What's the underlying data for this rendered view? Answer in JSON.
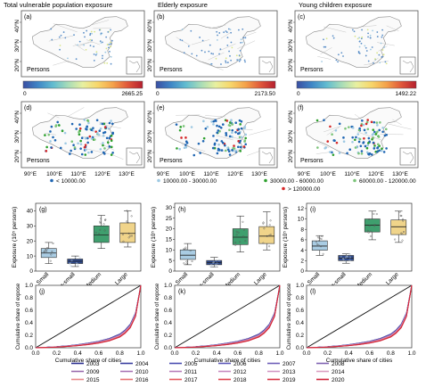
{
  "map_row1": [
    {
      "label": "(a)",
      "title": "Total vulnerable population exposure",
      "unit": "Persons",
      "cb_min": "0",
      "cb_max": "2665.25"
    },
    {
      "label": "(b)",
      "title": "Elderly  exposure",
      "unit": "Persons",
      "cb_min": "0",
      "cb_max": "2173.50"
    },
    {
      "label": "(c)",
      "title": "Young children  exposure",
      "unit": "Persons",
      "cb_min": "0",
      "cb_max": "1492.22"
    }
  ],
  "map_row2": [
    {
      "label": "(d)",
      "unit": "Persons"
    },
    {
      "label": "(e)",
      "unit": "Persons"
    },
    {
      "label": "(f)",
      "unit": "Persons"
    }
  ],
  "map_axes": {
    "x_ticks": [
      "90°E",
      "100°E",
      "110°E",
      "120°E",
      "130°E"
    ],
    "y_ticks": [
      "40°N",
      "30°N",
      "20°N"
    ]
  },
  "colorbar_colors": [
    "#3a4fa3",
    "#3f86c6",
    "#62bcd0",
    "#a7dcb8",
    "#e8f0a0",
    "#f7d66a",
    "#f4a24a",
    "#e0573a",
    "#b51f2e"
  ],
  "dot_legend": [
    {
      "label": "< 10000.00",
      "color": "#1f66b3"
    },
    {
      "label": "10000.00 - 30000.00",
      "color": "#9ec9e3"
    },
    {
      "label": "30000.00 - 60000.00",
      "color": "#2ca02c"
    },
    {
      "label": "60000.00 - 120000.00",
      "color": "#7cc47a"
    },
    {
      "label": "> 120000.00",
      "color": "#d62728"
    }
  ],
  "chart_data": [
    {
      "type": "box",
      "label": "(g)",
      "ylabel": "Exposure (10⁵ persons)",
      "ylim": [
        0,
        45
      ],
      "yticks": [
        0,
        10,
        20,
        30,
        40
      ],
      "categories": [
        "Small",
        "Medium-small",
        "Medium",
        "Large"
      ],
      "colors": [
        "#a9cce3",
        "#2e4a8c",
        "#3f9f6e",
        "#f0d48a"
      ],
      "boxes": [
        {
          "min": 5,
          "q1": 9,
          "median": 12,
          "q3": 15,
          "max": 19
        },
        {
          "min": 3,
          "q1": 5,
          "median": 6.5,
          "q3": 8,
          "max": 10
        },
        {
          "min": 15,
          "q1": 19,
          "median": 24,
          "q3": 30,
          "max": 37
        },
        {
          "min": 16,
          "q1": 19,
          "median": 25,
          "q3": 32,
          "max": 40
        }
      ]
    },
    {
      "type": "box",
      "label": "(h)",
      "ylabel": "Exposure (10⁵ persons)",
      "ylim": [
        0,
        32
      ],
      "yticks": [
        0,
        5,
        10,
        15,
        20,
        25,
        30
      ],
      "categories": [
        "Small",
        "Medium-small",
        "Medium",
        "Large"
      ],
      "colors": [
        "#a9cce3",
        "#2e4a8c",
        "#3f9f6e",
        "#f0d48a"
      ],
      "boxes": [
        {
          "min": 3,
          "q1": 5.5,
          "median": 7.5,
          "q3": 10,
          "max": 13
        },
        {
          "min": 2,
          "q1": 3,
          "median": 4,
          "q3": 5,
          "max": 6.5
        },
        {
          "min": 9,
          "q1": 12.5,
          "median": 16,
          "q3": 20,
          "max": 26
        },
        {
          "min": 10,
          "q1": 13,
          "median": 16.5,
          "q3": 21,
          "max": 28
        }
      ]
    },
    {
      "type": "box",
      "label": "(i)",
      "ylabel": "Exposure (10⁵ persons)",
      "ylim": [
        0,
        13
      ],
      "yticks": [
        0,
        2,
        4,
        6,
        8,
        10,
        12
      ],
      "categories": [
        "Small",
        "Medium-small",
        "Medium",
        "Large"
      ],
      "colors": [
        "#a9cce3",
        "#2e4a8c",
        "#3f9f6e",
        "#f0d48a"
      ],
      "boxes": [
        {
          "min": 3,
          "q1": 4,
          "median": 4.8,
          "q3": 5.8,
          "max": 6.8
        },
        {
          "min": 1.5,
          "q1": 2,
          "median": 2.5,
          "q3": 3,
          "max": 3.3
        },
        {
          "min": 6,
          "q1": 7.5,
          "median": 8.8,
          "q3": 10,
          "max": 11.5
        },
        {
          "min": 5.5,
          "q1": 7,
          "median": 8.5,
          "q3": 9.8,
          "max": 11.5
        }
      ]
    },
    {
      "type": "line",
      "label": "(j)",
      "xlabel": "Cumulative share of cities",
      "ylabel": "Cumulative share of expose",
      "xlim": [
        0,
        1
      ],
      "ylim": [
        0,
        1
      ],
      "ticks": [
        "0.0",
        "0.2",
        "0.4",
        "0.6",
        "0.8",
        "1.0"
      ],
      "x": [
        0,
        0.1,
        0.2,
        0.3,
        0.4,
        0.5,
        0.6,
        0.7,
        0.8,
        0.85,
        0.9,
        0.95,
        1.0
      ],
      "band_low": [
        0,
        0.004,
        0.01,
        0.02,
        0.033,
        0.05,
        0.075,
        0.11,
        0.17,
        0.23,
        0.32,
        0.5,
        1.0
      ],
      "band_high": [
        0,
        0.008,
        0.018,
        0.032,
        0.05,
        0.075,
        0.105,
        0.15,
        0.22,
        0.285,
        0.38,
        0.56,
        1.0
      ]
    },
    {
      "type": "line",
      "label": "(k)",
      "xlabel": "Cumulative share of cities",
      "ylabel": "Cumulative share of expose",
      "xlim": [
        0,
        1
      ],
      "ylim": [
        0,
        1
      ],
      "ticks": [
        "0.0",
        "0.2",
        "0.4",
        "0.6",
        "0.8",
        "1.0"
      ],
      "x": [
        0,
        0.1,
        0.2,
        0.3,
        0.4,
        0.5,
        0.6,
        0.7,
        0.8,
        0.85,
        0.9,
        0.95,
        1.0
      ],
      "band_low": [
        0,
        0.004,
        0.01,
        0.02,
        0.033,
        0.05,
        0.075,
        0.11,
        0.17,
        0.23,
        0.32,
        0.5,
        1.0
      ],
      "band_high": [
        0,
        0.008,
        0.018,
        0.032,
        0.05,
        0.075,
        0.105,
        0.15,
        0.22,
        0.285,
        0.38,
        0.56,
        1.0
      ]
    },
    {
      "type": "line",
      "label": "(l)",
      "xlabel": "Cumulative share of cities",
      "ylabel": "Cumulative share of expose",
      "xlim": [
        0,
        1
      ],
      "ylim": [
        0,
        1
      ],
      "ticks": [
        "0.0",
        "0.2",
        "0.4",
        "0.6",
        "0.8",
        "1.0"
      ],
      "x": [
        0,
        0.1,
        0.2,
        0.3,
        0.4,
        0.5,
        0.6,
        0.7,
        0.8,
        0.85,
        0.9,
        0.95,
        1.0
      ],
      "band_low": [
        0,
        0.004,
        0.01,
        0.02,
        0.033,
        0.05,
        0.075,
        0.11,
        0.17,
        0.23,
        0.32,
        0.5,
        1.0
      ],
      "band_high": [
        0,
        0.008,
        0.018,
        0.032,
        0.05,
        0.075,
        0.105,
        0.15,
        0.22,
        0.285,
        0.38,
        0.56,
        1.0
      ]
    }
  ],
  "year_legend": [
    {
      "year": "2003",
      "color": "#2b2f8f"
    },
    {
      "year": "2004",
      "color": "#3a3ea0"
    },
    {
      "year": "2005",
      "color": "#4a4db0"
    },
    {
      "year": "2006",
      "color": "#5c58b8"
    },
    {
      "year": "2007",
      "color": "#6e5fb8"
    },
    {
      "year": "2008",
      "color": "#8064b2"
    },
    {
      "year": "2009",
      "color": "#9a6cae"
    },
    {
      "year": "2010",
      "color": "#a975b5"
    },
    {
      "year": "2011",
      "color": "#b87fb9"
    },
    {
      "year": "2012",
      "color": "#c88cc0"
    },
    {
      "year": "2013",
      "color": "#d298c4"
    },
    {
      "year": "2014",
      "color": "#dba0c2"
    },
    {
      "year": "2015",
      "color": "#e88a8a"
    },
    {
      "year": "2016",
      "color": "#e67373"
    },
    {
      "year": "2017",
      "color": "#e45a5e"
    },
    {
      "year": "2018",
      "color": "#dd4450"
    },
    {
      "year": "2019",
      "color": "#d73344"
    },
    {
      "year": "2020",
      "color": "#cf2338"
    }
  ]
}
